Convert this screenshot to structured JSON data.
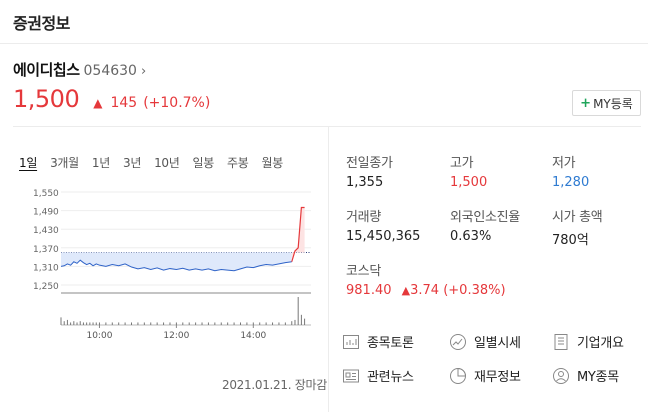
{
  "header": {
    "title": "증권정보"
  },
  "stock": {
    "name": "에이디칩스",
    "code": "054630",
    "chevron": "›",
    "price": "1,500",
    "arrow": "▲",
    "change": "145",
    "change_pct": "(+10.7%)",
    "color_up": "#e5383b"
  },
  "my_button": {
    "plus": "+",
    "label": "MY등록"
  },
  "tabs": [
    "1일",
    "3개월",
    "1년",
    "3년",
    "10년",
    "일봉",
    "주봉",
    "월봉"
  ],
  "active_tab": "1일",
  "chart_data": {
    "type": "line",
    "title": "",
    "y_ticks": [
      "1,550",
      "1,490",
      "1,430",
      "1,370",
      "1,310",
      "1,250"
    ],
    "ylim": [
      1250,
      1550
    ],
    "x_ticks": [
      "10:00",
      "12:00",
      "14:00"
    ],
    "previous_close": 1355,
    "price_color": "#2f63c8",
    "up_color": "#e5383b",
    "series": [
      {
        "x": [
          "09:00",
          "09:05",
          "09:10",
          "09:15",
          "09:20",
          "09:25",
          "09:30",
          "09:35",
          "09:40",
          "09:45",
          "09:50",
          "09:55",
          "10:00",
          "10:10",
          "10:20",
          "10:30",
          "10:40",
          "10:50",
          "11:00",
          "11:10",
          "11:20",
          "11:30",
          "11:40",
          "11:50",
          "12:00",
          "12:10",
          "12:20",
          "12:30",
          "12:40",
          "12:50",
          "13:00",
          "13:10",
          "13:20",
          "13:30",
          "13:40",
          "13:50",
          "14:00",
          "14:10",
          "14:20",
          "14:30",
          "14:40",
          "14:50",
          "15:00",
          "15:05",
          "15:10",
          "15:15",
          "15:20"
        ],
        "values": [
          1310,
          1312,
          1318,
          1314,
          1325,
          1320,
          1330,
          1322,
          1316,
          1320,
          1312,
          1318,
          1314,
          1310,
          1316,
          1312,
          1318,
          1308,
          1302,
          1306,
          1300,
          1305,
          1298,
          1303,
          1300,
          1304,
          1298,
          1302,
          1298,
          1302,
          1296,
          1300,
          1298,
          1296,
          1302,
          1308,
          1306,
          1312,
          1316,
          1314,
          1318,
          1322,
          1325,
          1360,
          1370,
          1500,
          1500
        ]
      }
    ],
    "volume_bars": [
      6,
      3,
      4,
      2,
      3,
      2,
      3,
      2,
      2,
      2,
      2,
      2,
      2,
      2,
      2,
      2,
      2,
      2,
      2,
      2,
      2,
      2,
      2,
      2,
      2,
      2,
      2,
      2,
      2,
      2,
      2,
      2,
      2,
      2,
      2,
      2,
      2,
      2,
      2,
      2,
      2,
      2,
      3,
      4,
      22,
      8,
      5
    ]
  },
  "chart_footer": "2021.01.21. 장마감",
  "stats": {
    "prev_close_label": "전일종가",
    "prev_close": "1,355",
    "high_label": "고가",
    "high": "1,500",
    "low_label": "저가",
    "low": "1,280",
    "volume_label": "거래량",
    "volume": "15,450,365",
    "foreign_label": "외국인소진율",
    "foreign": "0.63%",
    "mcap_label": "시가 총액",
    "mcap": "780억",
    "market_label": "코스닥",
    "market_value": "981.40",
    "market_arrow": "▲",
    "market_change": "3.74",
    "market_pct": "(+0.38%)"
  },
  "links": [
    {
      "label": "종목토론",
      "icon": "discussion-icon"
    },
    {
      "label": "일별시세",
      "icon": "daily-price-icon"
    },
    {
      "label": "기업개요",
      "icon": "company-overview-icon"
    },
    {
      "label": "관련뉴스",
      "icon": "news-icon"
    },
    {
      "label": "재무정보",
      "icon": "finance-pie-icon"
    },
    {
      "label": "MY종목",
      "icon": "user-icon"
    }
  ]
}
